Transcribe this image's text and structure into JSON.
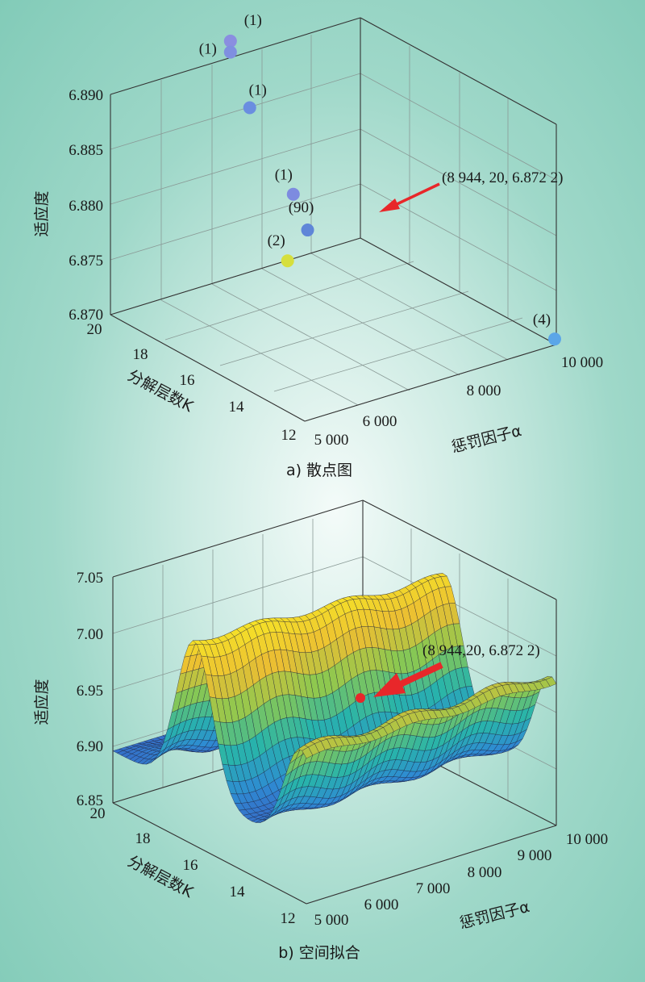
{
  "chart_data": [
    {
      "type": "scatter",
      "caption": "a) 散点图",
      "zlabel": "适应度",
      "xlabel": "惩罚因子α",
      "ylabel": "分解层数K",
      "zticks": [
        "6.870",
        "6.875",
        "6.880",
        "6.885",
        "6.890"
      ],
      "xticks": [
        "5 000",
        "6 000",
        "8 000",
        "10 000"
      ],
      "yticks": [
        "12",
        "14",
        "16",
        "18",
        "20"
      ],
      "points": [
        {
          "label": "(1)",
          "alpha": 7400,
          "K": 20,
          "fitness": 6.8915,
          "color": "#8a8ee0"
        },
        {
          "label": "(1)",
          "alpha": 7400,
          "K": 20,
          "fitness": 6.8905,
          "color": "#7f8fe0"
        },
        {
          "label": "(1)",
          "alpha": 7300,
          "K": 19,
          "fitness": 6.8868,
          "color": "#6a8ee0"
        },
        {
          "label": "(1)",
          "alpha": 7200,
          "K": 17,
          "fitness": 6.8815,
          "color": "#7d8be0"
        },
        {
          "label": "(2)",
          "alpha": 6600,
          "K": 16,
          "fitness": 6.8775,
          "color": "#d6df3c"
        },
        {
          "label": "(90)",
          "alpha": 8944,
          "K": 20,
          "fitness": 6.8722,
          "color": "#5f86d8"
        },
        {
          "label": "(4)",
          "alpha": 10000,
          "K": 12,
          "fitness": 6.8705,
          "color": "#5ba6e8"
        }
      ],
      "annotation": "(8 944, 20, 6.872 2)"
    },
    {
      "type": "surface",
      "caption": "b) 空间拟合",
      "zlabel": "适应度",
      "xlabel": "惩罚因子α",
      "ylabel": "分解层数K",
      "zticks": [
        "6.85",
        "6.90",
        "6.95",
        "7.00",
        "7.05"
      ],
      "xticks": [
        "5 000",
        "6 000",
        "7 000",
        "8 000",
        "9 000",
        "10 000"
      ],
      "yticks": [
        "12",
        "14",
        "16",
        "18",
        "20"
      ],
      "annotation": "(8 944,20, 6.872 2)"
    }
  ]
}
